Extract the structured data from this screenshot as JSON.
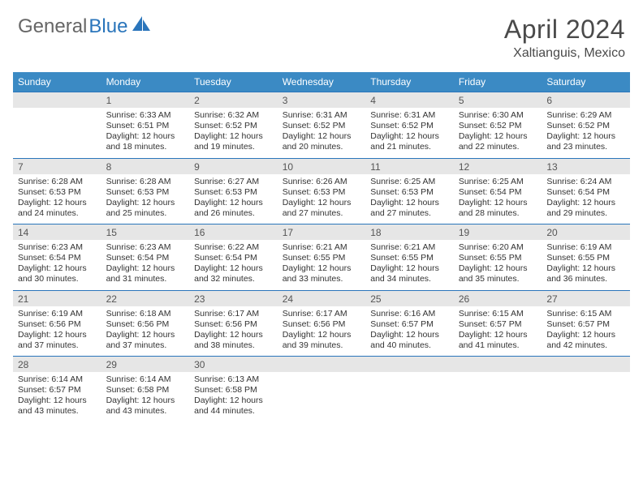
{
  "brand": {
    "part1": "General",
    "part2": "Blue"
  },
  "title": "April 2024",
  "location": "Xaltianguis, Mexico",
  "colors": {
    "header_bg": "#3b8ac4",
    "rule": "#2a75bb",
    "daynum_bg": "#e6e6e6",
    "text": "#333333",
    "brand_gray": "#666666",
    "brand_blue": "#2a75bb"
  },
  "fonts": {
    "title_size": 32,
    "location_size": 16,
    "dow_size": 12,
    "daynum_size": 12,
    "body_size": 10.5
  },
  "daysOfWeek": [
    "Sunday",
    "Monday",
    "Tuesday",
    "Wednesday",
    "Thursday",
    "Friday",
    "Saturday"
  ],
  "weeks": [
    [
      {
        "n": "",
        "sunrise": "",
        "sunset": "",
        "daylight": ""
      },
      {
        "n": "1",
        "sunrise": "Sunrise: 6:33 AM",
        "sunset": "Sunset: 6:51 PM",
        "daylight": "Daylight: 12 hours and 18 minutes."
      },
      {
        "n": "2",
        "sunrise": "Sunrise: 6:32 AM",
        "sunset": "Sunset: 6:52 PM",
        "daylight": "Daylight: 12 hours and 19 minutes."
      },
      {
        "n": "3",
        "sunrise": "Sunrise: 6:31 AM",
        "sunset": "Sunset: 6:52 PM",
        "daylight": "Daylight: 12 hours and 20 minutes."
      },
      {
        "n": "4",
        "sunrise": "Sunrise: 6:31 AM",
        "sunset": "Sunset: 6:52 PM",
        "daylight": "Daylight: 12 hours and 21 minutes."
      },
      {
        "n": "5",
        "sunrise": "Sunrise: 6:30 AM",
        "sunset": "Sunset: 6:52 PM",
        "daylight": "Daylight: 12 hours and 22 minutes."
      },
      {
        "n": "6",
        "sunrise": "Sunrise: 6:29 AM",
        "sunset": "Sunset: 6:52 PM",
        "daylight": "Daylight: 12 hours and 23 minutes."
      }
    ],
    [
      {
        "n": "7",
        "sunrise": "Sunrise: 6:28 AM",
        "sunset": "Sunset: 6:53 PM",
        "daylight": "Daylight: 12 hours and 24 minutes."
      },
      {
        "n": "8",
        "sunrise": "Sunrise: 6:28 AM",
        "sunset": "Sunset: 6:53 PM",
        "daylight": "Daylight: 12 hours and 25 minutes."
      },
      {
        "n": "9",
        "sunrise": "Sunrise: 6:27 AM",
        "sunset": "Sunset: 6:53 PM",
        "daylight": "Daylight: 12 hours and 26 minutes."
      },
      {
        "n": "10",
        "sunrise": "Sunrise: 6:26 AM",
        "sunset": "Sunset: 6:53 PM",
        "daylight": "Daylight: 12 hours and 27 minutes."
      },
      {
        "n": "11",
        "sunrise": "Sunrise: 6:25 AM",
        "sunset": "Sunset: 6:53 PM",
        "daylight": "Daylight: 12 hours and 27 minutes."
      },
      {
        "n": "12",
        "sunrise": "Sunrise: 6:25 AM",
        "sunset": "Sunset: 6:54 PM",
        "daylight": "Daylight: 12 hours and 28 minutes."
      },
      {
        "n": "13",
        "sunrise": "Sunrise: 6:24 AM",
        "sunset": "Sunset: 6:54 PM",
        "daylight": "Daylight: 12 hours and 29 minutes."
      }
    ],
    [
      {
        "n": "14",
        "sunrise": "Sunrise: 6:23 AM",
        "sunset": "Sunset: 6:54 PM",
        "daylight": "Daylight: 12 hours and 30 minutes."
      },
      {
        "n": "15",
        "sunrise": "Sunrise: 6:23 AM",
        "sunset": "Sunset: 6:54 PM",
        "daylight": "Daylight: 12 hours and 31 minutes."
      },
      {
        "n": "16",
        "sunrise": "Sunrise: 6:22 AM",
        "sunset": "Sunset: 6:54 PM",
        "daylight": "Daylight: 12 hours and 32 minutes."
      },
      {
        "n": "17",
        "sunrise": "Sunrise: 6:21 AM",
        "sunset": "Sunset: 6:55 PM",
        "daylight": "Daylight: 12 hours and 33 minutes."
      },
      {
        "n": "18",
        "sunrise": "Sunrise: 6:21 AM",
        "sunset": "Sunset: 6:55 PM",
        "daylight": "Daylight: 12 hours and 34 minutes."
      },
      {
        "n": "19",
        "sunrise": "Sunrise: 6:20 AM",
        "sunset": "Sunset: 6:55 PM",
        "daylight": "Daylight: 12 hours and 35 minutes."
      },
      {
        "n": "20",
        "sunrise": "Sunrise: 6:19 AM",
        "sunset": "Sunset: 6:55 PM",
        "daylight": "Daylight: 12 hours and 36 minutes."
      }
    ],
    [
      {
        "n": "21",
        "sunrise": "Sunrise: 6:19 AM",
        "sunset": "Sunset: 6:56 PM",
        "daylight": "Daylight: 12 hours and 37 minutes."
      },
      {
        "n": "22",
        "sunrise": "Sunrise: 6:18 AM",
        "sunset": "Sunset: 6:56 PM",
        "daylight": "Daylight: 12 hours and 37 minutes."
      },
      {
        "n": "23",
        "sunrise": "Sunrise: 6:17 AM",
        "sunset": "Sunset: 6:56 PM",
        "daylight": "Daylight: 12 hours and 38 minutes."
      },
      {
        "n": "24",
        "sunrise": "Sunrise: 6:17 AM",
        "sunset": "Sunset: 6:56 PM",
        "daylight": "Daylight: 12 hours and 39 minutes."
      },
      {
        "n": "25",
        "sunrise": "Sunrise: 6:16 AM",
        "sunset": "Sunset: 6:57 PM",
        "daylight": "Daylight: 12 hours and 40 minutes."
      },
      {
        "n": "26",
        "sunrise": "Sunrise: 6:15 AM",
        "sunset": "Sunset: 6:57 PM",
        "daylight": "Daylight: 12 hours and 41 minutes."
      },
      {
        "n": "27",
        "sunrise": "Sunrise: 6:15 AM",
        "sunset": "Sunset: 6:57 PM",
        "daylight": "Daylight: 12 hours and 42 minutes."
      }
    ],
    [
      {
        "n": "28",
        "sunrise": "Sunrise: 6:14 AM",
        "sunset": "Sunset: 6:57 PM",
        "daylight": "Daylight: 12 hours and 43 minutes."
      },
      {
        "n": "29",
        "sunrise": "Sunrise: 6:14 AM",
        "sunset": "Sunset: 6:58 PM",
        "daylight": "Daylight: 12 hours and 43 minutes."
      },
      {
        "n": "30",
        "sunrise": "Sunrise: 6:13 AM",
        "sunset": "Sunset: 6:58 PM",
        "daylight": "Daylight: 12 hours and 44 minutes."
      },
      {
        "n": "",
        "sunrise": "",
        "sunset": "",
        "daylight": ""
      },
      {
        "n": "",
        "sunrise": "",
        "sunset": "",
        "daylight": ""
      },
      {
        "n": "",
        "sunrise": "",
        "sunset": "",
        "daylight": ""
      },
      {
        "n": "",
        "sunrise": "",
        "sunset": "",
        "daylight": ""
      }
    ]
  ]
}
